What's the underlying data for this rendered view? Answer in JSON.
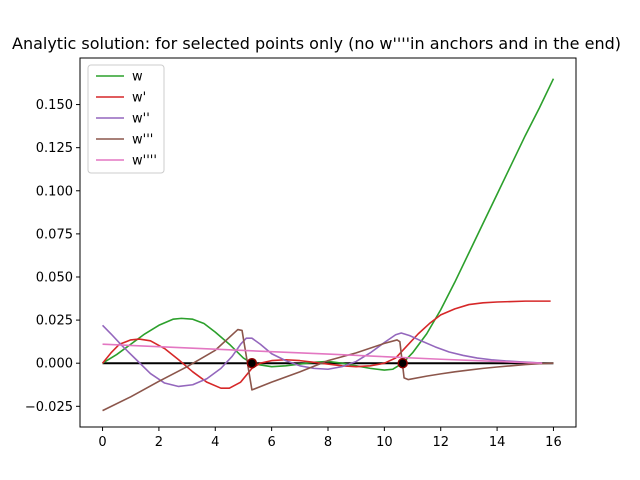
{
  "chart_data": {
    "type": "line",
    "title": "Analytic solution: for selected points only (no w''''in anchors and in the end)",
    "xlabel": "",
    "ylabel": "",
    "xlim": [
      -0.8,
      16.8
    ],
    "ylim": [
      -0.037,
      0.177
    ],
    "xticks": [
      0,
      2,
      4,
      6,
      8,
      10,
      12,
      14,
      16
    ],
    "yticks": [
      -0.025,
      0.0,
      0.025,
      0.05,
      0.075,
      0.1,
      0.125,
      0.15
    ],
    "ytick_labels": [
      "−0.025",
      "0.000",
      "0.025",
      "0.050",
      "0.075",
      "0.100",
      "0.125",
      "0.150"
    ],
    "grid": false,
    "legend_position": "top-left",
    "series": [
      {
        "name": "w",
        "color": "#2ca02c",
        "points": [
          [
            0,
            0
          ],
          [
            0.5,
            0.005
          ],
          [
            1.0,
            0.011
          ],
          [
            1.5,
            0.017
          ],
          [
            2.0,
            0.022
          ],
          [
            2.5,
            0.0255
          ],
          [
            2.8,
            0.026
          ],
          [
            3.2,
            0.0255
          ],
          [
            3.6,
            0.023
          ],
          [
            4.0,
            0.018
          ],
          [
            4.5,
            0.011
          ],
          [
            5.0,
            0.003
          ],
          [
            5.3,
            0
          ],
          [
            5.6,
            -0.001
          ],
          [
            6.0,
            -0.002
          ],
          [
            6.5,
            -0.0015
          ],
          [
            7.0,
            -0.0005
          ],
          [
            7.5,
            0.0005
          ],
          [
            8.0,
            0.001
          ],
          [
            8.5,
            0
          ],
          [
            9.0,
            -0.0015
          ],
          [
            9.5,
            -0.003
          ],
          [
            10.0,
            -0.004
          ],
          [
            10.3,
            -0.0035
          ],
          [
            10.65,
            0
          ],
          [
            11.0,
            0.006
          ],
          [
            11.5,
            0.017
          ],
          [
            12.0,
            0.031
          ],
          [
            12.5,
            0.047
          ],
          [
            13.0,
            0.064
          ],
          [
            13.5,
            0.081
          ],
          [
            14.0,
            0.098
          ],
          [
            14.5,
            0.115
          ],
          [
            15.0,
            0.132
          ],
          [
            15.5,
            0.148
          ],
          [
            16.0,
            0.165
          ]
        ]
      },
      {
        "name": "w'",
        "color": "#d62728",
        "points": [
          [
            0,
            0
          ],
          [
            0.3,
            0.006
          ],
          [
            0.6,
            0.011
          ],
          [
            1.0,
            0.0135
          ],
          [
            1.3,
            0.014
          ],
          [
            1.7,
            0.013
          ],
          [
            2.2,
            0.0085
          ],
          [
            2.7,
            0.002
          ],
          [
            3.2,
            -0.005
          ],
          [
            3.7,
            -0.011
          ],
          [
            4.2,
            -0.0145
          ],
          [
            4.5,
            -0.0145
          ],
          [
            4.9,
            -0.011
          ],
          [
            5.3,
            -0.003
          ],
          [
            5.6,
            0
          ],
          [
            6.0,
            0.0015
          ],
          [
            6.5,
            0.002
          ],
          [
            7.0,
            0.0015
          ],
          [
            7.5,
            0.0005
          ],
          [
            8.0,
            -0.0005
          ],
          [
            8.5,
            -0.0015
          ],
          [
            9.0,
            -0.002
          ],
          [
            9.5,
            -0.0015
          ],
          [
            10.0,
            0
          ],
          [
            10.4,
            0.003
          ],
          [
            10.8,
            0.01
          ],
          [
            11.2,
            0.017
          ],
          [
            11.6,
            0.023
          ],
          [
            12.0,
            0.028
          ],
          [
            12.5,
            0.0315
          ],
          [
            13.0,
            0.034
          ],
          [
            13.5,
            0.035
          ],
          [
            14.0,
            0.0355
          ],
          [
            15.0,
            0.036
          ],
          [
            15.9,
            0.036
          ]
        ]
      },
      {
        "name": "w''",
        "color": "#9467bd",
        "points": [
          [
            0,
            0.022
          ],
          [
            0.3,
            0.017
          ],
          [
            0.7,
            0.01
          ],
          [
            1.2,
            0.002
          ],
          [
            1.7,
            -0.006
          ],
          [
            2.2,
            -0.0115
          ],
          [
            2.7,
            -0.0135
          ],
          [
            3.2,
            -0.0125
          ],
          [
            3.7,
            -0.009
          ],
          [
            4.2,
            -0.003
          ],
          [
            4.6,
            0.004
          ],
          [
            4.9,
            0.011
          ],
          [
            5.1,
            0.0145
          ],
          [
            5.3,
            0.0145
          ],
          [
            5.6,
            0.011
          ],
          [
            6.0,
            0.0055
          ],
          [
            6.5,
            0.0015
          ],
          [
            7.0,
            -0.0015
          ],
          [
            7.5,
            -0.003
          ],
          [
            8.0,
            -0.0035
          ],
          [
            8.5,
            -0.002
          ],
          [
            9.0,
            0.001
          ],
          [
            9.5,
            0.006
          ],
          [
            10.0,
            0.012
          ],
          [
            10.4,
            0.0165
          ],
          [
            10.6,
            0.0175
          ],
          [
            10.9,
            0.016
          ],
          [
            11.3,
            0.013
          ],
          [
            11.8,
            0.0095
          ],
          [
            12.3,
            0.0065
          ],
          [
            12.8,
            0.0045
          ],
          [
            13.3,
            0.003
          ],
          [
            13.8,
            0.002
          ],
          [
            14.3,
            0.0013
          ],
          [
            14.8,
            0.0008
          ],
          [
            15.3,
            0.0004
          ],
          [
            15.6,
            0
          ]
        ]
      },
      {
        "name": "w'''",
        "color": "#8c564b",
        "points": [
          [
            0,
            -0.0275
          ],
          [
            1.0,
            -0.0195
          ],
          [
            2.0,
            -0.0105
          ],
          [
            3.0,
            -0.002
          ],
          [
            4.0,
            0.0075
          ],
          [
            4.8,
            0.0195
          ],
          [
            4.95,
            0.019
          ],
          [
            5.3,
            -0.0155
          ],
          [
            6.0,
            -0.011
          ],
          [
            7.0,
            -0.005
          ],
          [
            8.0,
            0.0015
          ],
          [
            9.0,
            0.006
          ],
          [
            10.0,
            0.0115
          ],
          [
            10.45,
            0.0135
          ],
          [
            10.55,
            0.0125
          ],
          [
            10.7,
            -0.0085
          ],
          [
            10.85,
            -0.0095
          ],
          [
            11.5,
            -0.0075
          ],
          [
            12.0,
            -0.0062
          ],
          [
            12.5,
            -0.005
          ],
          [
            13.0,
            -0.004
          ],
          [
            13.5,
            -0.003
          ],
          [
            14.0,
            -0.0022
          ],
          [
            14.5,
            -0.0015
          ],
          [
            15.0,
            -0.0008
          ],
          [
            15.5,
            -0.0003
          ],
          [
            16.0,
            0
          ]
        ]
      },
      {
        "name": "w''''",
        "color": "#e377c2",
        "points": [
          [
            0,
            0.011
          ],
          [
            2.0,
            0.0096
          ],
          [
            4.0,
            0.0081
          ],
          [
            6.0,
            0.0067
          ],
          [
            8.0,
            0.0053
          ],
          [
            10.0,
            0.0038
          ],
          [
            12.0,
            0.0023
          ],
          [
            14.0,
            0.001
          ],
          [
            15.6,
            0
          ]
        ]
      }
    ],
    "baseline": {
      "x": [
        0,
        16
      ],
      "y": 0,
      "color": "#000000"
    },
    "anchor_points": {
      "x": [
        5.3,
        10.65
      ],
      "y": 0,
      "fill": "#000000",
      "ring": "#8c0000"
    }
  }
}
